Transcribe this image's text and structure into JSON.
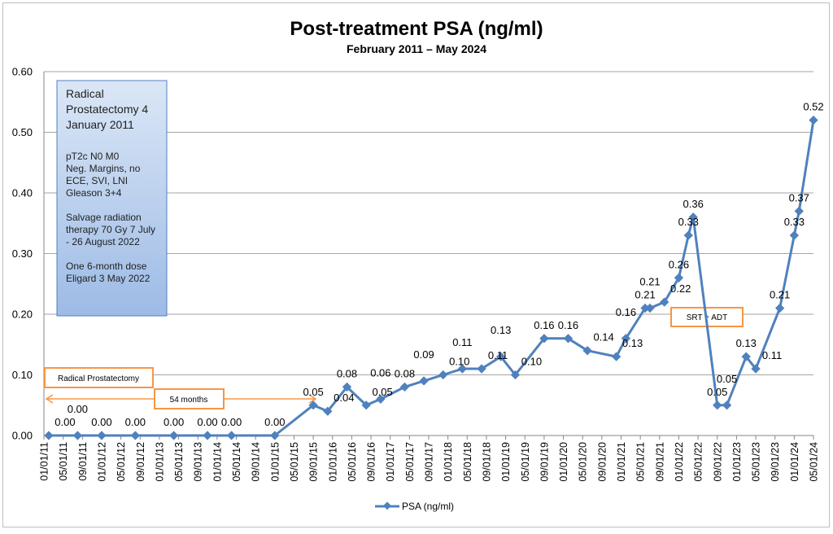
{
  "chart_data": {
    "type": "line",
    "title": "Post-treatment PSA (ng/ml)",
    "subtitle": "February 2011 – May 2024",
    "xlabel": "",
    "ylabel": "",
    "ylim": [
      0,
      0.6
    ],
    "yticks": [
      "0.00",
      "0.10",
      "0.20",
      "0.30",
      "0.40",
      "0.50",
      "0.60"
    ],
    "xlim": [
      "2011-01-01",
      "2024-05-01"
    ],
    "xticks": [
      "01/01/11",
      "05/01/11",
      "09/01/11",
      "01/01/12",
      "05/01/12",
      "09/01/12",
      "01/01/13",
      "05/01/13",
      "09/01/13",
      "01/01/14",
      "05/01/14",
      "09/01/14",
      "01/01/15",
      "05/01/15",
      "09/01/15",
      "01/01/16",
      "05/01/16",
      "09/01/16",
      "01/01/17",
      "05/01/17",
      "09/01/17",
      "01/01/18",
      "05/01/18",
      "09/01/18",
      "01/01/19",
      "05/01/19",
      "09/01/19",
      "01/01/20",
      "05/01/20",
      "09/01/20",
      "01/01/21",
      "05/01/21",
      "09/01/21",
      "01/01/22",
      "05/01/22",
      "09/01/22",
      "01/01/23",
      "05/01/23",
      "09/01/23",
      "01/01/24",
      "05/01/24"
    ],
    "grid": true,
    "legend": "bottom",
    "series": [
      {
        "name": "PSA (ng/ml)",
        "color": "#4f81bd",
        "x": [
          "2011-02",
          "2011-08",
          "2012-01",
          "2012-08",
          "2013-04",
          "2013-11",
          "2014-04",
          "2015-01",
          "2015-09",
          "2015-12",
          "2016-04",
          "2016-08",
          "2016-11",
          "2017-04",
          "2017-08",
          "2017-12",
          "2018-04",
          "2018-08",
          "2018-12",
          "2019-03",
          "2019-09",
          "2020-02",
          "2020-06",
          "2020-12",
          "2021-02",
          "2021-06",
          "2021-07",
          "2021-10",
          "2022-01",
          "2022-03",
          "2022-04",
          "2022-09",
          "2022-11",
          "2023-03",
          "2023-05",
          "2023-10",
          "2024-01",
          "2024-02",
          "2024-05"
        ],
        "values": [
          0,
          0,
          0,
          0,
          0,
          0,
          0,
          0,
          0.05,
          0.04,
          0.08,
          0.05,
          0.06,
          0.08,
          0.09,
          0.1,
          0.11,
          0.11,
          0.13,
          0.1,
          0.16,
          0.16,
          0.14,
          0.13,
          0.16,
          0.21,
          0.21,
          0.22,
          0.26,
          0.33,
          0.36,
          0.05,
          0.05,
          0.13,
          0.11,
          0.21,
          0.33,
          0.37,
          0.52
        ],
        "labels": [
          "0.00",
          "0.00",
          "0.00",
          "0.00",
          "0.00",
          "0.00",
          "0.00",
          "0.00",
          "0.05",
          "0.04",
          "0.08",
          "0.05",
          "0.06",
          "0.08",
          "0.09",
          "0.10",
          "0.11",
          "0.11",
          "0.13",
          "0.10",
          "0.16",
          "0.16",
          "0.14",
          "0.13",
          "0.16",
          "0.21",
          "0.21",
          "0.22",
          "0.26",
          "0.33",
          "0.36",
          "0.05",
          "0.05",
          "0.13",
          "0.11",
          "0.21",
          "0.33",
          "0.37",
          "0.52"
        ]
      }
    ],
    "annotations": {
      "info_box": [
        "Radical",
        "Prostatectomy 4",
        "January 2011",
        "",
        "pT2c N0 M0",
        "Neg. Margins, no",
        "ECE, SVI, LNI",
        "Gleason 3+4",
        "",
        "Salvage radiation",
        "therapy 70 Gy 7 July",
        "- 26 August 2022",
        "",
        "One 6-month dose",
        "Eligard 3 May 2022"
      ],
      "radical_prostatectomy": "Radical Prostatectomy",
      "months_54": "54 months",
      "srt_adt": "SRT + ADT"
    },
    "colors": {
      "line": "#4f81bd",
      "annotation_border": "#f79646",
      "info_box_border": "#4f81bd",
      "info_box_fill": "#c6d9f1",
      "arrow": "#f79646"
    }
  }
}
